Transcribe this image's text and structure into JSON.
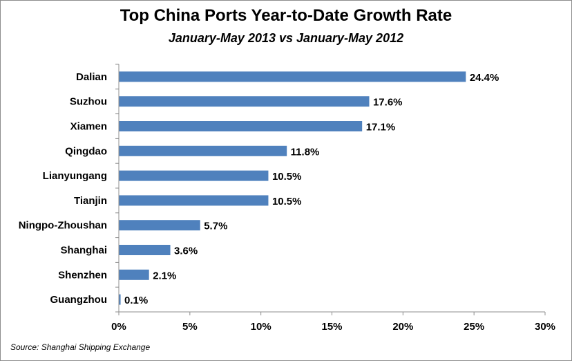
{
  "chart_data": {
    "type": "bar",
    "orientation": "horizontal",
    "title": "Top China Ports Year-to-Date Growth Rate",
    "subtitle": "January-May  2013 vs January-May  2012",
    "categories": [
      "Dalian",
      "Suzhou",
      "Xiamen",
      "Qingdao",
      "Lianyungang",
      "Tianjin",
      "Ningpo-Zhoushan",
      "Shanghai",
      "Shenzhen",
      "Guangzhou"
    ],
    "values": [
      24.4,
      17.6,
      17.1,
      11.8,
      10.5,
      10.5,
      5.7,
      3.6,
      2.1,
      0.1
    ],
    "data_labels": [
      "24.4%",
      "17.6%",
      "17.1%",
      "11.8%",
      "10.5%",
      "10.5%",
      "5.7%",
      "3.6%",
      "2.1%",
      "0.1%"
    ],
    "xlim": [
      0,
      30
    ],
    "x_ticks": [
      0,
      5,
      10,
      15,
      20,
      25,
      30
    ],
    "x_tick_labels": [
      "0%",
      "5%",
      "10%",
      "15%",
      "20%",
      "25%",
      "30%"
    ],
    "xlabel": "",
    "ylabel": "",
    "bar_color": "#4f81bd",
    "grid": false,
    "legend": "none",
    "source": "Source: Shanghai Shipping Exchange"
  }
}
